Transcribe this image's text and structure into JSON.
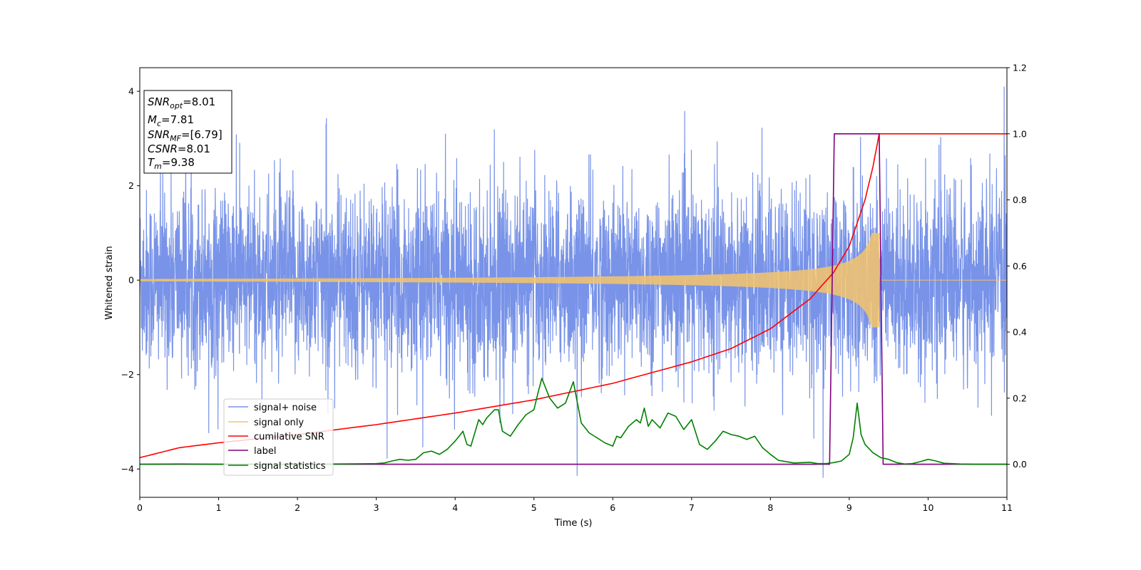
{
  "chart_data": {
    "type": "line",
    "xlabel": "Time (s)",
    "ylabel": "Whitened strain",
    "xlim": [
      0,
      11
    ],
    "ylim_left": [
      -4.6,
      4.5
    ],
    "ylim_right": [
      -0.1,
      1.2
    ],
    "x_ticks": [
      "0",
      "1",
      "2",
      "3",
      "4",
      "5",
      "6",
      "7",
      "8",
      "9",
      "10",
      "11"
    ],
    "y_ticks_left": [
      "-4",
      "-2",
      "0",
      "2",
      "4"
    ],
    "y_ticks_right": [
      "0.0",
      "0.2",
      "0.4",
      "0.6",
      "0.8",
      "1.0",
      "1.2"
    ],
    "grid": false,
    "legend_position": "lower-left",
    "stats_box": {
      "snr_opt": {
        "main": "SNR",
        "sub": "opt",
        "value": "=8.01"
      },
      "mc": {
        "main": "M",
        "sub": "c",
        "value": "=7.81"
      },
      "snr_mf": {
        "main": "SNR",
        "sub": "MF",
        "value": "=[6.79]"
      },
      "csnr": {
        "main": "CSNR",
        "value": "=8.01"
      },
      "tm": {
        "main": "T",
        "sub": "m",
        "value": "=9.38"
      }
    },
    "series": [
      {
        "name": "signal+ noise",
        "axis": "left",
        "color": "#7893e8",
        "description_values": {
          "sample_rate_hz": 400,
          "noise_std": 1.0,
          "spike_max": 4.1,
          "spike_min": -4.15
        }
      },
      {
        "name": "signal only",
        "axis": "left",
        "color": "#f5c46a",
        "chirp": {
          "t_merge": 9.38,
          "amp_start": 0.02,
          "amp_end": 1.0
        }
      },
      {
        "name": "cumilative SNR",
        "axis": "right",
        "color": "#ff0000",
        "x": [
          0,
          0.5,
          1,
          2,
          3,
          4,
          5,
          6,
          7,
          7.5,
          8,
          8.5,
          8.8,
          9.0,
          9.2,
          9.3,
          9.38,
          11
        ],
        "y": [
          0.02,
          0.05,
          0.065,
          0.09,
          0.12,
          0.155,
          0.195,
          0.245,
          0.31,
          0.35,
          0.41,
          0.5,
          0.58,
          0.66,
          0.8,
          0.9,
          1.0,
          1.0
        ]
      },
      {
        "name": "label",
        "axis": "right",
        "color": "#800080",
        "x": [
          0,
          8.75,
          8.81,
          9.38,
          9.43,
          11
        ],
        "y": [
          0,
          0,
          1,
          1,
          0,
          0
        ]
      },
      {
        "name": "signal statistics",
        "axis": "right",
        "color": "#008000",
        "x": [
          0,
          0.5,
          1,
          1.5,
          2,
          2.5,
          3,
          3.1,
          3.2,
          3.3,
          3.4,
          3.5,
          3.6,
          3.7,
          3.8,
          3.9,
          4.0,
          4.05,
          4.1,
          4.15,
          4.2,
          4.3,
          4.35,
          4.4,
          4.5,
          4.55,
          4.6,
          4.7,
          4.8,
          4.9,
          5.0,
          5.05,
          5.1,
          5.2,
          5.3,
          5.4,
          5.5,
          5.6,
          5.7,
          5.8,
          5.9,
          6.0,
          6.05,
          6.1,
          6.2,
          6.3,
          6.35,
          6.4,
          6.45,
          6.5,
          6.6,
          6.7,
          6.8,
          6.9,
          7.0,
          7.1,
          7.2,
          7.3,
          7.4,
          7.5,
          7.6,
          7.7,
          7.8,
          7.9,
          8.0,
          8.1,
          8.2,
          8.3,
          8.4,
          8.5,
          8.6,
          8.7,
          8.8,
          8.9,
          9.0,
          9.05,
          9.1,
          9.15,
          9.2,
          9.3,
          9.4,
          9.5,
          9.6,
          9.7,
          9.8,
          9.9,
          10.0,
          10.1,
          10.2,
          10.3,
          10.4,
          10.6,
          10.8,
          11
        ],
        "y": [
          0.0,
          0.001,
          0.0,
          0.0,
          0.0,
          0.001,
          0.002,
          0.004,
          0.01,
          0.015,
          0.012,
          0.015,
          0.035,
          0.04,
          0.03,
          0.045,
          0.07,
          0.085,
          0.1,
          0.06,
          0.055,
          0.135,
          0.12,
          0.14,
          0.165,
          0.165,
          0.1,
          0.085,
          0.12,
          0.15,
          0.165,
          0.215,
          0.26,
          0.2,
          0.17,
          0.185,
          0.25,
          0.125,
          0.095,
          0.08,
          0.065,
          0.055,
          0.085,
          0.08,
          0.115,
          0.135,
          0.125,
          0.17,
          0.115,
          0.135,
          0.11,
          0.155,
          0.145,
          0.105,
          0.135,
          0.06,
          0.045,
          0.07,
          0.1,
          0.09,
          0.085,
          0.075,
          0.085,
          0.05,
          0.03,
          0.012,
          0.008,
          0.004,
          0.005,
          0.006,
          0.002,
          0.002,
          0.005,
          0.01,
          0.03,
          0.08,
          0.185,
          0.09,
          0.06,
          0.035,
          0.02,
          0.015,
          0.005,
          0.001,
          0.002,
          0.008,
          0.015,
          0.01,
          0.003,
          0.002,
          0.001,
          0.0,
          0.0,
          0.0
        ]
      }
    ]
  }
}
